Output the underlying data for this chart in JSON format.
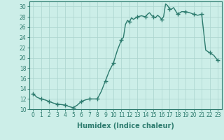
{
  "x": [
    0,
    0.5,
    1,
    1.5,
    2,
    2.5,
    3,
    3.5,
    4,
    4.5,
    5,
    5.5,
    6,
    6.5,
    7,
    7.5,
    8,
    8.5,
    9,
    9.5,
    10,
    10.5,
    11,
    11.25,
    11.5,
    11.75,
    12,
    12.25,
    12.5,
    13,
    13.5,
    14,
    14.25,
    14.5,
    14.75,
    15,
    15.25,
    15.5,
    15.75,
    16,
    16.25,
    16.5,
    16.75,
    17,
    17.25,
    17.5,
    18,
    18.5,
    19,
    19.5,
    20,
    20.5,
    21,
    21.5,
    22,
    22.5,
    23
  ],
  "y": [
    13.0,
    12.3,
    12.0,
    11.8,
    11.5,
    11.2,
    11.0,
    10.9,
    10.8,
    10.5,
    10.3,
    10.8,
    11.5,
    11.8,
    12.0,
    12.0,
    12.0,
    13.5,
    15.5,
    17.5,
    19.0,
    21.5,
    23.5,
    24.0,
    26.5,
    27.3,
    27.0,
    27.8,
    27.5,
    28.0,
    28.2,
    28.0,
    28.5,
    28.8,
    28.3,
    28.0,
    27.8,
    28.3,
    28.0,
    27.5,
    28.0,
    30.5,
    30.2,
    29.5,
    29.5,
    29.8,
    28.5,
    29.0,
    29.0,
    28.8,
    28.5,
    28.3,
    28.5,
    21.5,
    21.0,
    20.5,
    19.5
  ],
  "marker_x": [
    0,
    1,
    2,
    3,
    4,
    5,
    6,
    7,
    8,
    9,
    10,
    11,
    12,
    13,
    14,
    15,
    16,
    17,
    18,
    19,
    20,
    21,
    22,
    23
  ],
  "marker_y": [
    13.0,
    12.0,
    11.5,
    11.0,
    10.8,
    10.3,
    11.5,
    12.0,
    12.0,
    15.5,
    19.0,
    23.5,
    27.0,
    28.0,
    28.0,
    28.0,
    27.5,
    29.5,
    28.5,
    29.0,
    28.5,
    28.5,
    21.0,
    19.5
  ],
  "line_color": "#2d7b6e",
  "marker": "+",
  "markersize": 4,
  "linewidth": 1.0,
  "bg_color": "#cceee8",
  "grid_color": "#aad4ce",
  "xlabel": "Humidex (Indice chaleur)",
  "xlim": [
    -0.5,
    23.5
  ],
  "ylim": [
    10,
    31
  ],
  "yticks": [
    10,
    12,
    14,
    16,
    18,
    20,
    22,
    24,
    26,
    28,
    30
  ],
  "xticks": [
    0,
    1,
    2,
    3,
    4,
    5,
    6,
    7,
    8,
    9,
    10,
    11,
    12,
    13,
    14,
    15,
    16,
    17,
    18,
    19,
    20,
    21,
    22,
    23
  ],
  "tick_label_fontsize": 5.5,
  "xlabel_fontsize": 7,
  "tick_color": "#2d7b6e",
  "axis_color": "#2d7b6e"
}
